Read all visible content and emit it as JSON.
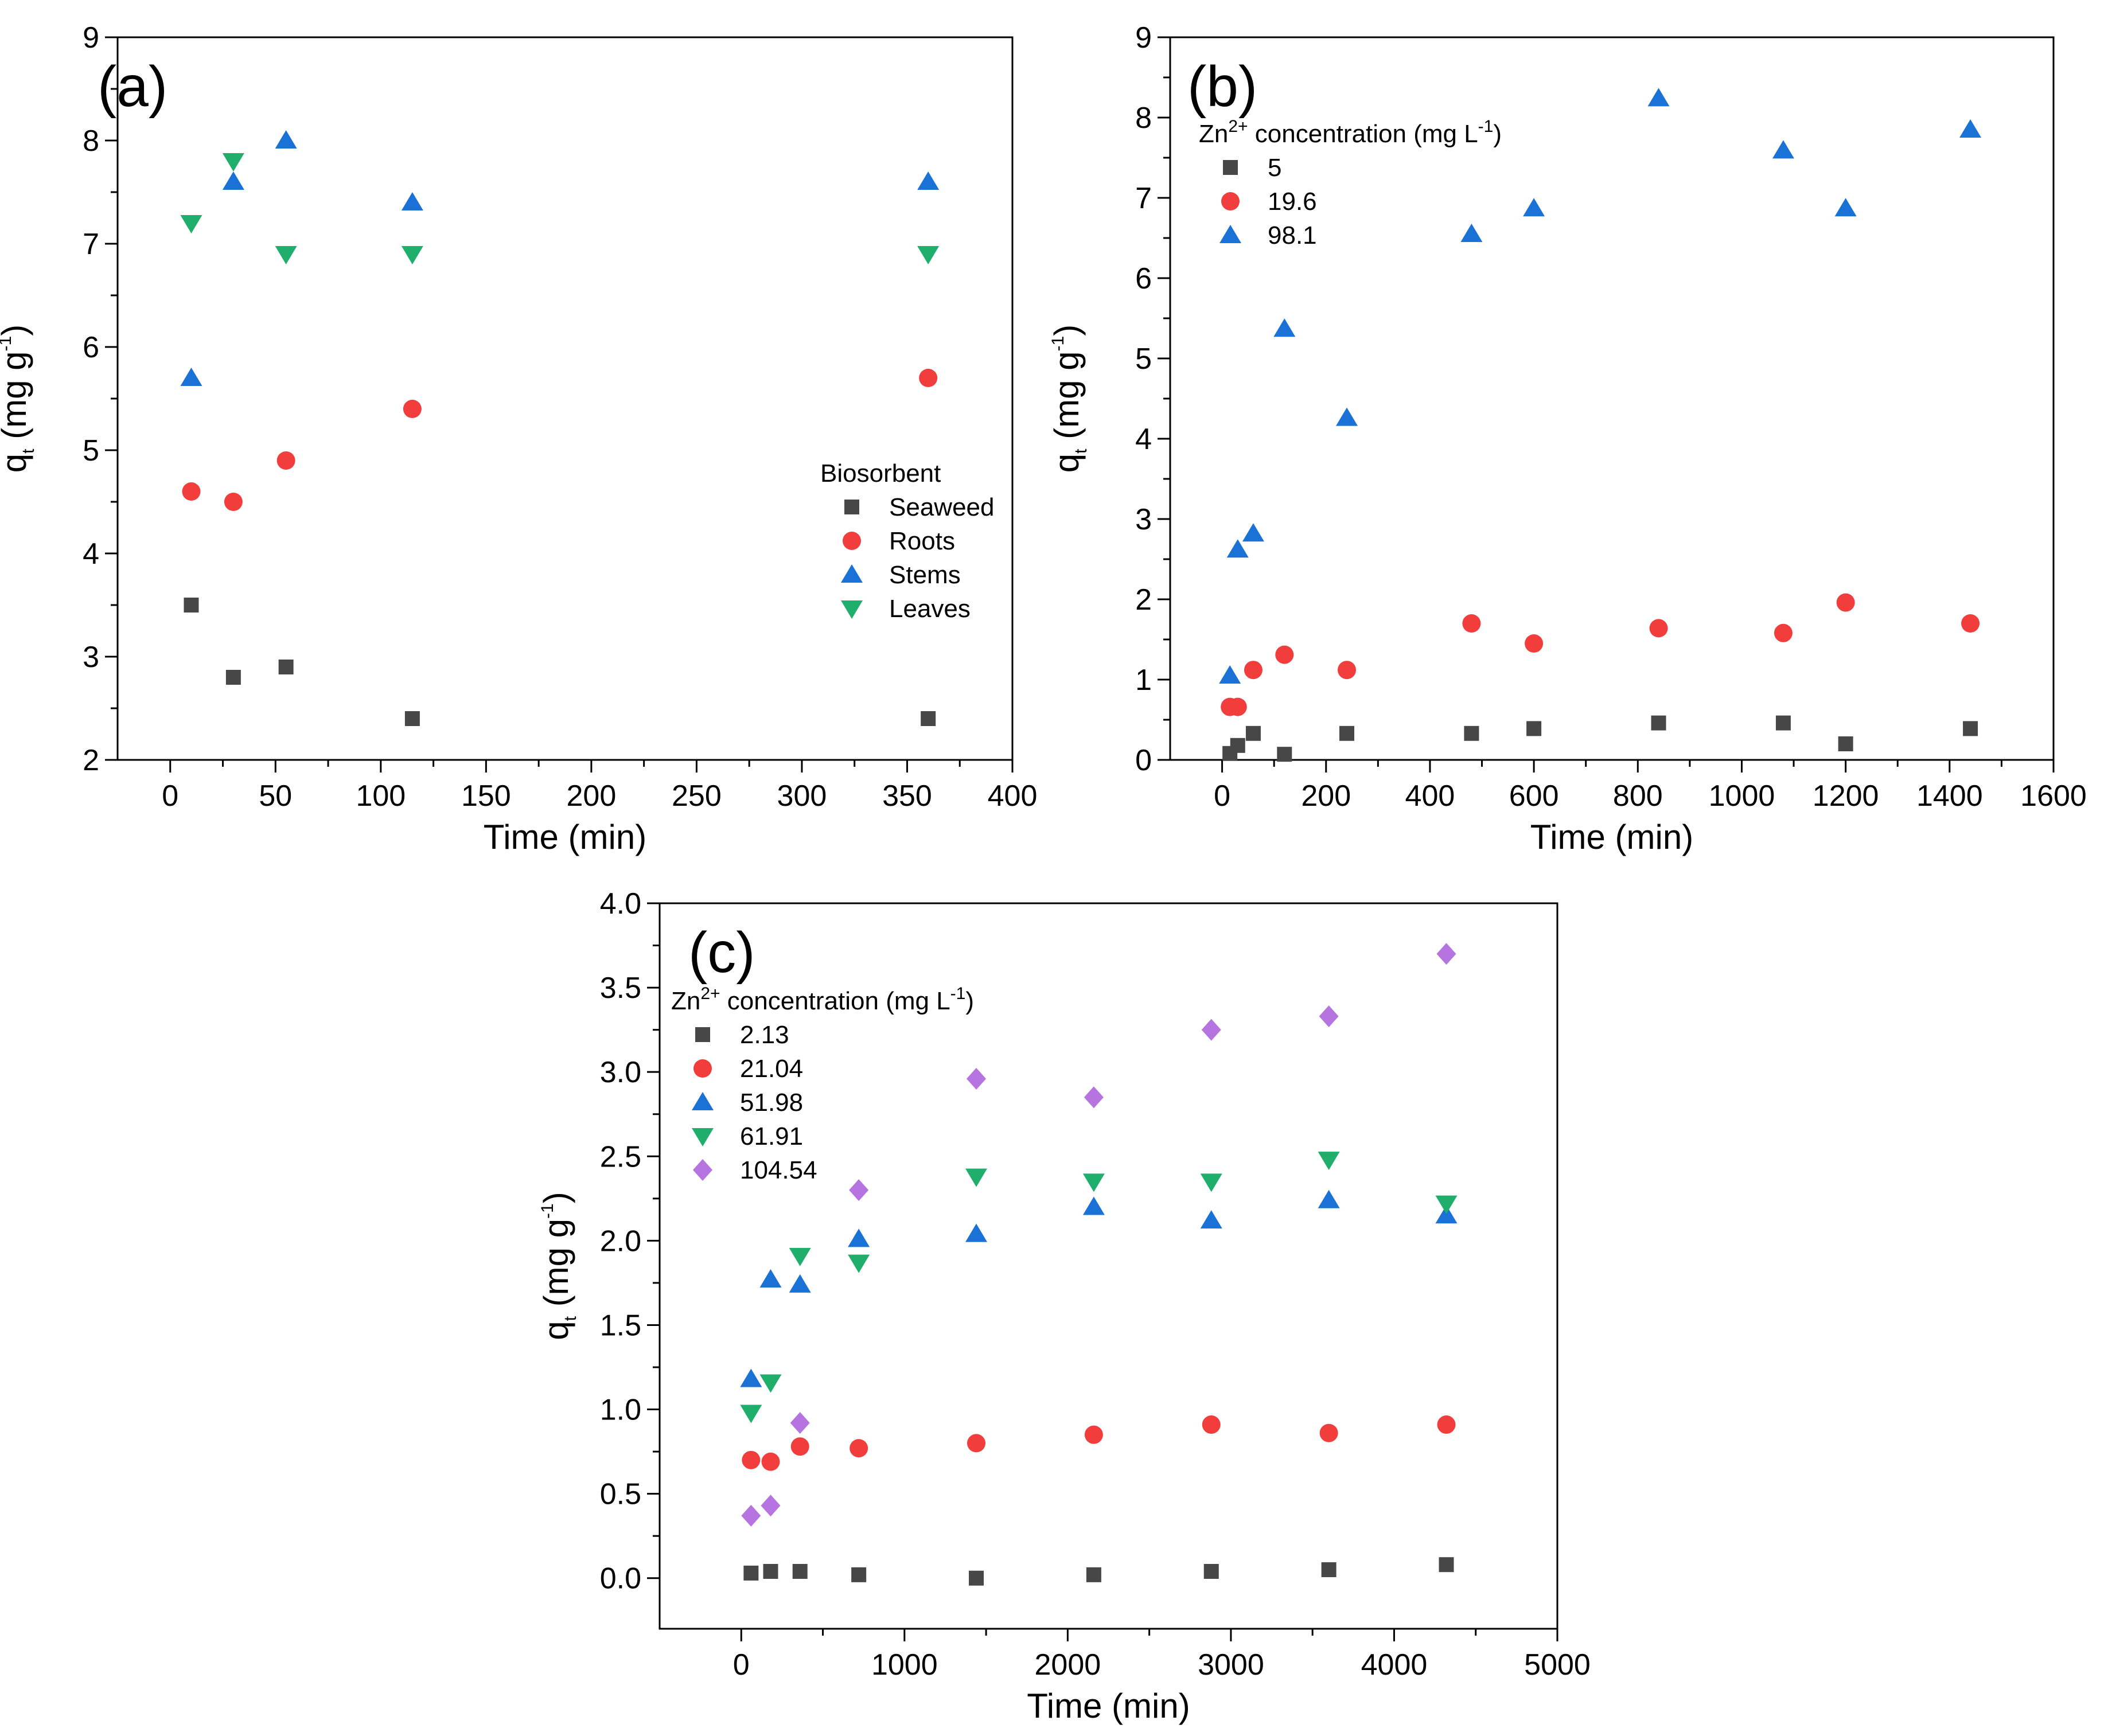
{
  "colors": {
    "square": "#474747",
    "circle": "#f23d3d",
    "up_triangle": "#1a72d6",
    "down_triangle": "#1fae6c",
    "diamond": "#b574e0"
  },
  "chart_data": [
    {
      "type": "scatter",
      "panel_label": "(a)",
      "xlabel": "Time (min)",
      "ylabel": {
        "main": "q",
        "sub": "t",
        "unit": " (mg g",
        "sup": "-1",
        "close": ")"
      },
      "xlim": [
        -25,
        400
      ],
      "ylim": [
        2,
        9
      ],
      "xticks": [
        0,
        50,
        100,
        150,
        200,
        250,
        300,
        350,
        400
      ],
      "yticks": [
        2,
        3,
        4,
        5,
        6,
        7,
        8,
        9
      ],
      "legend": {
        "title": "Biosorbent",
        "title_parts": null,
        "placement": "center-right"
      },
      "series": [
        {
          "name": "Seaweed",
          "marker": "square",
          "x": [
            10,
            30,
            55,
            115,
            360
          ],
          "y": [
            3.5,
            2.8,
            2.9,
            2.4,
            2.4
          ]
        },
        {
          "name": "Roots",
          "marker": "circle",
          "x": [
            10,
            30,
            55,
            115,
            360
          ],
          "y": [
            4.6,
            4.5,
            4.9,
            5.4,
            5.7
          ]
        },
        {
          "name": "Stems",
          "marker": "up_triangle",
          "x": [
            10,
            30,
            55,
            115,
            360
          ],
          "y": [
            5.7,
            7.6,
            8.0,
            7.4,
            7.6
          ]
        },
        {
          "name": "Leaves",
          "marker": "down_triangle",
          "x": [
            10,
            30,
            55,
            115,
            360
          ],
          "y": [
            7.2,
            7.8,
            6.9,
            6.9,
            6.9
          ]
        }
      ]
    },
    {
      "type": "scatter",
      "panel_label": "(b)",
      "xlabel": "Time (min)",
      "ylabel": {
        "main": "q",
        "sub": "t",
        "unit": " (mg g",
        "sup": "-1",
        "close": ")"
      },
      "xlim": [
        -100,
        1600
      ],
      "ylim": [
        0,
        9
      ],
      "xticks": [
        0,
        200,
        400,
        600,
        800,
        1000,
        1200,
        1400,
        1600
      ],
      "yticks": [
        0,
        1,
        2,
        3,
        4,
        5,
        6,
        7,
        8,
        9
      ],
      "legend": {
        "title": null,
        "title_parts": {
          "a": "Zn",
          "sup1": "2+",
          "b": " concentration (mg L",
          "sup2": "-1",
          "c": ")"
        },
        "placement": "top-left"
      },
      "series": [
        {
          "name": "5",
          "marker": "square",
          "x": [
            15,
            30,
            60,
            120,
            240,
            480,
            600,
            840,
            1080,
            1200,
            1440
          ],
          "y": [
            0.08,
            0.18,
            0.33,
            0.07,
            0.33,
            0.33,
            0.39,
            0.46,
            0.46,
            0.2,
            0.39
          ]
        },
        {
          "name": "19.6",
          "marker": "circle",
          "x": [
            15,
            30,
            60,
            120,
            240,
            480,
            600,
            840,
            1080,
            1200,
            1440
          ],
          "y": [
            0.66,
            0.66,
            1.12,
            1.31,
            1.12,
            1.7,
            1.45,
            1.64,
            1.58,
            1.96,
            1.7
          ]
        },
        {
          "name": "98.1",
          "marker": "up_triangle",
          "x": [
            15,
            30,
            60,
            120,
            240,
            480,
            600,
            840,
            1080,
            1200,
            1440
          ],
          "y": [
            1.05,
            2.62,
            2.82,
            5.37,
            4.26,
            6.55,
            6.87,
            8.24,
            7.59,
            6.87,
            7.85
          ]
        }
      ]
    },
    {
      "type": "scatter",
      "panel_label": "(c)",
      "xlabel": "Time (min)",
      "ylabel": {
        "main": "q",
        "sub": "t",
        "unit": " (mg g",
        "sup": "-1",
        "close": ")"
      },
      "xlim": [
        -500,
        5000
      ],
      "ylim": [
        -0.3,
        4.0
      ],
      "xticks": [
        0,
        1000,
        2000,
        3000,
        4000,
        5000
      ],
      "yticks": [
        0.0,
        0.5,
        1.0,
        1.5,
        2.0,
        2.5,
        3.0,
        3.5,
        4.0
      ],
      "legend": {
        "title": null,
        "title_parts": {
          "a": "Zn",
          "sup1": "2+",
          "b": " concentration (mg L",
          "sup2": "-1",
          "c": ")"
        },
        "placement": "top-left"
      },
      "series": [
        {
          "name": "2.13",
          "marker": "square",
          "x": [
            60,
            180,
            360,
            720,
            1440,
            2160,
            2880,
            3600,
            4320
          ],
          "y": [
            0.03,
            0.04,
            0.04,
            0.02,
            0.0,
            0.02,
            0.04,
            0.05,
            0.08
          ]
        },
        {
          "name": "21.04",
          "marker": "circle",
          "x": [
            60,
            180,
            360,
            720,
            1440,
            2160,
            2880,
            3600,
            4320
          ],
          "y": [
            0.7,
            0.69,
            0.78,
            0.77,
            0.8,
            0.85,
            0.91,
            0.86,
            0.91
          ]
        },
        {
          "name": "51.98",
          "marker": "up_triangle",
          "x": [
            60,
            180,
            360,
            720,
            1440,
            2160,
            2880,
            3600,
            4320
          ],
          "y": [
            1.18,
            1.77,
            1.74,
            2.01,
            2.04,
            2.2,
            2.12,
            2.24,
            2.15
          ]
        },
        {
          "name": "61.91",
          "marker": "down_triangle",
          "x": [
            60,
            180,
            360,
            720,
            1440,
            2160,
            2880,
            3600,
            4320
          ],
          "y": [
            0.98,
            1.16,
            1.91,
            1.87,
            2.38,
            2.35,
            2.35,
            2.48,
            2.22
          ]
        },
        {
          "name": "104.54",
          "marker": "diamond",
          "x": [
            60,
            180,
            360,
            720,
            1440,
            2160,
            2880,
            3600,
            4320
          ],
          "y": [
            0.37,
            0.43,
            0.92,
            2.3,
            2.96,
            2.85,
            3.25,
            3.33,
            3.7
          ]
        }
      ]
    }
  ]
}
